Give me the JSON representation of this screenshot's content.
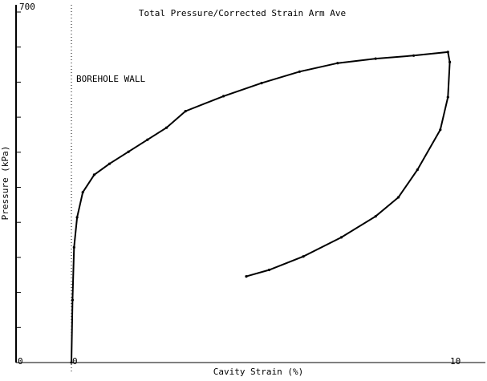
{
  "chart_data": {
    "type": "line",
    "title": "Total Pressure/Corrected Strain Arm Ave",
    "xlabel": "Cavity Strain (%)",
    "ylabel": "Pressure (kPa)",
    "xlim": [
      -1,
      10.5
    ],
    "ylim": [
      0,
      700
    ],
    "x_tick_labels": [
      {
        "value": 0,
        "label": "0"
      },
      {
        "value": 10,
        "label": "10"
      }
    ],
    "y_tick_labels": [
      {
        "value": 0,
        "label": "0"
      },
      {
        "value": 700,
        "label": "700"
      }
    ],
    "y_tick_values": [
      0,
      70,
      140,
      210,
      280,
      350,
      420,
      490,
      560,
      630,
      700
    ],
    "annotation": {
      "text": "BOREHOLE WALL",
      "x": 0
    },
    "series": [
      {
        "x": [
          0.0,
          0.03,
          0.07,
          0.15,
          0.3,
          0.6,
          1.0,
          1.5,
          2.0,
          2.5,
          3.0,
          4.0,
          5.0,
          6.0,
          7.0,
          8.0,
          9.0,
          9.9,
          9.95,
          9.9,
          9.7,
          9.1,
          8.6,
          8.0,
          7.1,
          6.1,
          5.2,
          4.6
        ],
        "y": [
          0,
          125,
          230,
          290,
          340,
          375,
          397,
          421,
          445,
          469,
          502,
          532,
          558,
          581,
          598,
          607,
          613,
          620,
          600,
          530,
          465,
          385,
          330,
          292,
          250,
          212,
          185,
          172
        ]
      }
    ]
  }
}
